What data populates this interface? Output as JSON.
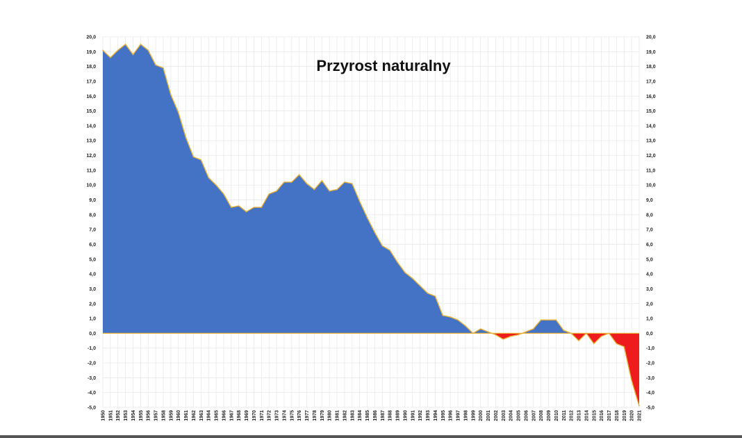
{
  "chart_data": {
    "type": "area",
    "title": "Przyrost naturalny",
    "xlabel": "",
    "ylabel": "",
    "ylim": [
      -5,
      20
    ],
    "ytick_labels": [
      "20,0",
      "19,0",
      "18,0",
      "17,0",
      "16,0",
      "15,0",
      "14,0",
      "13,0",
      "12,0",
      "11,0",
      "10,0",
      "9,0",
      "8,0",
      "7,0",
      "6,0",
      "5,0",
      "4,0",
      "3,0",
      "2,0",
      "1,0",
      "0,0",
      "-1,0",
      "-2,0",
      "-3,0",
      "-4,0",
      "-5,0"
    ],
    "x": [
      1950,
      1951,
      1952,
      1953,
      1954,
      1955,
      1956,
      1957,
      1958,
      1959,
      1960,
      1961,
      1962,
      1963,
      1964,
      1965,
      1966,
      1967,
      1968,
      1969,
      1970,
      1971,
      1972,
      1973,
      1974,
      1975,
      1976,
      1977,
      1978,
      1979,
      1980,
      1981,
      1982,
      1983,
      1984,
      1985,
      1986,
      1987,
      1988,
      1989,
      1990,
      1991,
      1992,
      1993,
      1994,
      1995,
      1996,
      1997,
      1998,
      1999,
      2000,
      2001,
      2002,
      2003,
      2004,
      2005,
      2006,
      2007,
      2008,
      2009,
      2010,
      2011,
      2012,
      2013,
      2014,
      2015,
      2016,
      2017,
      2018,
      2019,
      2020,
      2021
    ],
    "values": [
      19.1,
      18.6,
      19.1,
      19.5,
      18.8,
      19.5,
      19.1,
      18.1,
      17.9,
      16.1,
      14.9,
      13.2,
      11.9,
      11.7,
      10.5,
      10.0,
      9.4,
      8.5,
      8.6,
      8.2,
      8.5,
      8.5,
      9.4,
      9.6,
      10.2,
      10.2,
      10.7,
      10.1,
      9.7,
      10.3,
      9.6,
      9.7,
      10.2,
      10.1,
      8.9,
      7.8,
      6.8,
      5.9,
      5.6,
      4.8,
      4.1,
      3.7,
      3.2,
      2.7,
      2.5,
      1.2,
      1.1,
      0.9,
      0.5,
      0.0,
      0.3,
      0.1,
      -0.1,
      -0.4,
      -0.2,
      -0.1,
      0.1,
      0.3,
      0.9,
      0.9,
      0.9,
      0.2,
      0.0,
      -0.5,
      0.0,
      -0.7,
      -0.2,
      0.0,
      -0.7,
      -0.9,
      -3.2,
      -4.9
    ],
    "series": [
      {
        "name": "",
        "color": "#4472c4",
        "sign": "positive"
      },
      {
        "name": "",
        "color": "#ee1c1c",
        "sign": "negative"
      }
    ],
    "outline_color": "#e8b23a",
    "grid": true,
    "legend": "none"
  }
}
